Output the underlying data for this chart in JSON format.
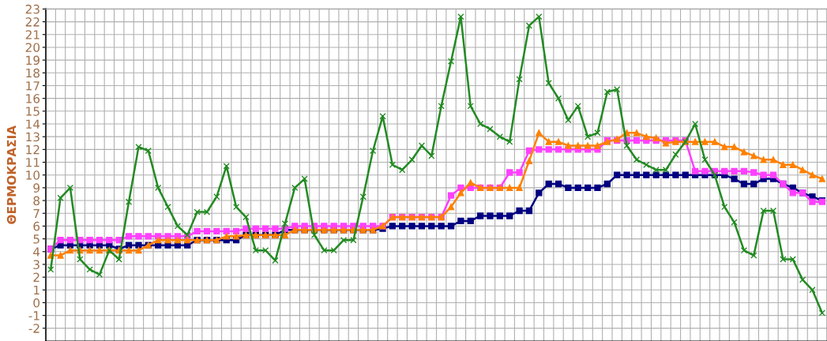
{
  "chart_data": {
    "type": "line",
    "ylabel": "ΘΕΡΜΟΚΡΑΣΙΑ",
    "categories": [
      null,
      null,
      null,
      null,
      null,
      null,
      null,
      null,
      null,
      null,
      null,
      null,
      null,
      null,
      null,
      null,
      null,
      null,
      null,
      null,
      null,
      null,
      null,
      null,
      null,
      null,
      null,
      null,
      null,
      null,
      null,
      null,
      null,
      null,
      null,
      null,
      null,
      null,
      null,
      null,
      null,
      null,
      null,
      null,
      null,
      null,
      null,
      null,
      null,
      null,
      null,
      null,
      null,
      null,
      null,
      null,
      null,
      null,
      null,
      null,
      null,
      null,
      null,
      null,
      null,
      null,
      null,
      null,
      null,
      null,
      null,
      null,
      null,
      null,
      null,
      null,
      null,
      null,
      null,
      null
    ],
    "series": [
      {
        "color": "#000080",
        "marker": "square",
        "values": [
          4.2,
          4.5,
          4.5,
          4.5,
          4.5,
          4.5,
          4.5,
          4.2,
          4.5,
          4.5,
          4.5,
          4.5,
          4.5,
          4.5,
          4.5,
          4.9,
          4.9,
          4.9,
          4.9,
          4.9,
          5.3,
          5.3,
          5.3,
          5.3,
          5.7,
          5.7,
          5.7,
          5.7,
          5.7,
          5.7,
          5.7,
          5.7,
          5.7,
          5.7,
          5.8,
          6.0,
          6.0,
          6.0,
          6.0,
          6.0,
          6.0,
          6.0,
          6.4,
          6.4,
          6.8,
          6.8,
          6.8,
          6.8,
          7.2,
          7.2,
          8.6,
          9.3,
          9.3,
          9.0,
          9.0,
          9.0,
          9.0,
          9.3,
          10.0,
          10.0,
          10.0,
          10.0,
          10.0,
          10.0,
          10.0,
          10.0,
          10.0,
          10.0,
          10.0,
          10.0,
          9.7,
          9.3,
          9.3,
          9.7,
          9.7,
          9.3,
          9.0,
          8.6,
          8.3,
          8.0
        ]
      },
      {
        "color": "#ff40ff",
        "marker": "square",
        "values": [
          4.2,
          4.9,
          4.9,
          4.9,
          4.9,
          4.9,
          4.9,
          4.9,
          5.2,
          5.2,
          5.2,
          5.2,
          5.2,
          5.2,
          5.2,
          5.6,
          5.6,
          5.6,
          5.6,
          5.6,
          5.8,
          5.8,
          5.8,
          5.8,
          5.8,
          6.0,
          6.0,
          6.0,
          6.0,
          6.0,
          6.0,
          6.0,
          6.0,
          6.0,
          6.0,
          6.7,
          6.7,
          6.7,
          6.7,
          6.7,
          6.7,
          8.4,
          9.0,
          9.0,
          9.0,
          9.0,
          9.0,
          10.2,
          10.2,
          11.9,
          12.0,
          12.0,
          12.0,
          12.0,
          12.0,
          12.0,
          12.0,
          12.7,
          12.7,
          12.7,
          12.7,
          12.7,
          12.7,
          12.7,
          12.7,
          12.7,
          10.3,
          10.3,
          10.3,
          10.3,
          10.3,
          10.3,
          10.2,
          10.0,
          10.0,
          9.3,
          8.6,
          8.6,
          7.9,
          7.9
        ]
      },
      {
        "color": "#ff8000",
        "marker": "triangle",
        "values": [
          3.7,
          3.7,
          4.1,
          4.1,
          4.1,
          4.1,
          4.1,
          4.1,
          4.1,
          4.1,
          4.5,
          4.9,
          4.9,
          4.9,
          4.9,
          4.9,
          4.9,
          4.9,
          5.2,
          5.2,
          5.3,
          5.3,
          5.3,
          5.3,
          5.3,
          5.7,
          5.7,
          5.7,
          5.7,
          5.7,
          5.7,
          5.7,
          5.7,
          5.7,
          6.0,
          6.7,
          6.7,
          6.7,
          6.7,
          6.7,
          6.7,
          7.5,
          8.6,
          9.4,
          9.0,
          9.0,
          9.0,
          9.0,
          9.0,
          11.1,
          13.3,
          12.6,
          12.6,
          12.3,
          12.3,
          12.3,
          12.3,
          12.6,
          12.8,
          13.3,
          13.3,
          13.0,
          12.9,
          12.5,
          12.6,
          12.6,
          12.6,
          12.6,
          12.6,
          12.2,
          12.2,
          11.8,
          11.5,
          11.2,
          11.2,
          10.8,
          10.8,
          10.4,
          10.0,
          9.7
        ]
      },
      {
        "color": "#228b22",
        "marker": "cross",
        "values": [
          2.6,
          8.2,
          9.0,
          3.4,
          2.6,
          2.2,
          4.1,
          3.4,
          7.9,
          12.2,
          11.9,
          9.0,
          7.5,
          6.0,
          5.3,
          7.1,
          7.1,
          8.3,
          10.7,
          7.5,
          6.7,
          4.1,
          4.1,
          3.3,
          6.2,
          9.0,
          9.7,
          5.3,
          4.1,
          4.1,
          4.9,
          4.9,
          8.3,
          11.9,
          14.6,
          10.8,
          10.4,
          11.2,
          12.3,
          11.5,
          15.4,
          18.9,
          22.4,
          15.4,
          14.0,
          13.6,
          13.0,
          12.6,
          17.5,
          21.7,
          22.4,
          17.2,
          16.0,
          14.3,
          15.4,
          13.0,
          13.3,
          16.5,
          16.7,
          12.3,
          11.2,
          10.8,
          10.4,
          10.4,
          11.6,
          12.6,
          14.0,
          11.2,
          10.0,
          7.5,
          6.3,
          4.1,
          3.7,
          7.2,
          7.2,
          3.4,
          3.4,
          1.8,
          1.0,
          -0.8
        ]
      }
    ],
    "ylim": [
      -3,
      23
    ],
    "yticks": [
      -2,
      -1,
      0,
      1,
      2,
      3,
      4,
      5,
      6,
      7,
      8,
      9,
      10,
      11,
      12,
      13,
      14,
      15,
      16,
      17,
      18,
      19,
      20,
      21,
      22,
      23
    ],
    "grid": true,
    "tick_labels": "y"
  }
}
